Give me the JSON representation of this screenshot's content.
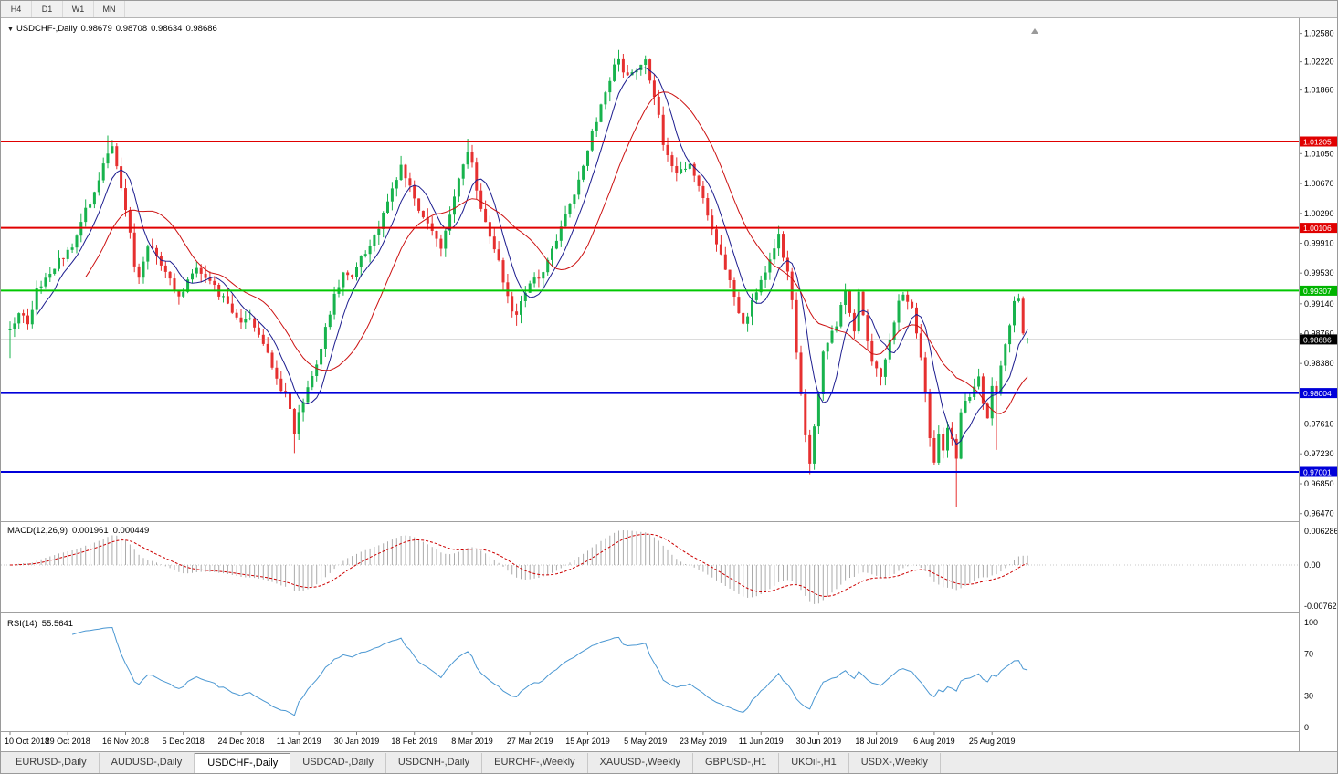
{
  "toolbar": {
    "timeframes": [
      "H4",
      "D1",
      "W1",
      "MN"
    ]
  },
  "chart": {
    "symbol_label": "USDCHF-,Daily",
    "ohlc": {
      "open": "0.98679",
      "high": "0.98708",
      "low": "0.98634",
      "close": "0.98686"
    },
    "price_axis": {
      "ticks": [
        "1.02580",
        "1.02220",
        "1.01860",
        "1.01050",
        "1.00670",
        "1.00290",
        "0.99910",
        "0.99530",
        "0.99140",
        "0.98760",
        "0.98380",
        "0.97610",
        "0.97230",
        "0.96850",
        "0.96470"
      ],
      "badges": [
        {
          "label": "1.01205",
          "value": 1.01205,
          "bg": "#e00000"
        },
        {
          "label": "1.00106",
          "value": 1.00106,
          "bg": "#e00000"
        },
        {
          "label": "0.99307",
          "value": 0.99307,
          "bg": "#00b400"
        },
        {
          "label": "0.98686",
          "value": 0.98686,
          "bg": "#000000"
        },
        {
          "label": "0.98004",
          "value": 0.98004,
          "bg": "#0000d9"
        },
        {
          "label": "0.97001",
          "value": 0.97001,
          "bg": "#0000d9"
        }
      ]
    }
  },
  "indicators": {
    "macd": {
      "label": "MACD(12,26,9)",
      "value_main": "0.001961",
      "value_signal": "0.000449",
      "axis": [
        "0.006286",
        "0.00",
        "-0.00762"
      ]
    },
    "rsi": {
      "label": "RSI(14)",
      "value": "55.5641",
      "axis": [
        "100",
        "70",
        "30",
        "0"
      ],
      "levels": [
        70,
        30
      ]
    }
  },
  "tabs": {
    "items": [
      "EURUSD-,Daily",
      "AUDUSD-,Daily",
      "USDCHF-,Daily",
      "USDCAD-,Daily",
      "USDCNH-,Daily",
      "EURCHF-,Weekly",
      "XAUUSD-,Weekly",
      "GBPUSD-,H1",
      "UKOil-,H1",
      "USDX-,Weekly"
    ],
    "active_index": 2
  },
  "colors": {
    "up_candle": "#18b34d",
    "down_candle": "#e63030",
    "ma_fast": "#1d1d8f",
    "ma_slow": "#cc1111",
    "macd_hist": "#ababab",
    "macd_signal": "#cc0000",
    "rsi_line": "#4a97d2",
    "hline_red": "#e00000",
    "hline_green": "#00c800",
    "hline_blue": "#0000d9",
    "current_price_badge": "#000000"
  },
  "chart_data": {
    "type": "candlestick",
    "symbol": "USDCHF",
    "timeframe": "Daily",
    "n_candles": 230,
    "current_price": 0.98686,
    "last_ohlc": {
      "open": 0.98679,
      "high": 0.98708,
      "low": 0.98634,
      "close": 0.98686
    },
    "price_range_visible": [
      0.9647,
      1.0258
    ],
    "hlines": [
      {
        "label": "1.01205",
        "value": 1.01205,
        "color": "#e00000"
      },
      {
        "label": "1.00106",
        "value": 1.00106,
        "color": "#e00000"
      },
      {
        "label": "0.99307",
        "value": 0.99307,
        "color": "#00c800"
      },
      {
        "label": "0.98004",
        "value": 0.98004,
        "color": "#0000d9"
      },
      {
        "label": "0.97001",
        "value": 0.97001,
        "color": "#0000d9"
      }
    ],
    "date_labels": [
      "10 Oct 2018",
      "29 Oct 2018",
      "16 Nov 2018",
      "5 Dec 2018",
      "24 Dec 2018",
      "11 Jan 2019",
      "30 Jan 2019",
      "18 Feb 2019",
      "8 Mar 2019",
      "27 Mar 2019",
      "15 Apr 2019",
      "5 May 2019",
      "23 May 2019",
      "11 Jun 2019",
      "30 Jun 2019",
      "18 Jul 2019",
      "6 Aug 2019",
      "25 Aug 2019"
    ],
    "close_anchors": [
      [
        0,
        0.988
      ],
      [
        2,
        0.99
      ],
      [
        4,
        0.9892
      ],
      [
        6,
        0.993
      ],
      [
        9,
        0.9955
      ],
      [
        12,
        0.9975
      ],
      [
        14,
        0.999
      ],
      [
        16,
        1.002
      ],
      [
        18,
        1.0045
      ],
      [
        20,
        1.0075
      ],
      [
        22,
        1.011
      ],
      [
        23,
        1.0118
      ],
      [
        24,
        1.0085
      ],
      [
        25,
        1.006
      ],
      [
        26,
        1.003
      ],
      [
        27,
        1.0
      ],
      [
        28,
        0.9965
      ],
      [
        29,
        0.9945
      ],
      [
        31,
        0.9985
      ],
      [
        33,
        0.9975
      ],
      [
        35,
        0.9955
      ],
      [
        37,
        0.993
      ],
      [
        38,
        0.992
      ],
      [
        40,
        0.9945
      ],
      [
        42,
        0.996
      ],
      [
        44,
        0.995
      ],
      [
        46,
        0.9935
      ],
      [
        48,
        0.992
      ],
      [
        50,
        0.9905
      ],
      [
        52,
        0.989
      ],
      [
        54,
        0.9895
      ],
      [
        56,
        0.9875
      ],
      [
        58,
        0.985
      ],
      [
        60,
        0.982
      ],
      [
        62,
        0.9795
      ],
      [
        63,
        0.978
      ],
      [
        64,
        0.9748
      ],
      [
        65,
        0.9775
      ],
      [
        67,
        0.981
      ],
      [
        69,
        0.984
      ],
      [
        71,
        0.988
      ],
      [
        73,
        0.993
      ],
      [
        75,
        0.995
      ],
      [
        77,
        0.9945
      ],
      [
        79,
        0.997
      ],
      [
        81,
        0.999
      ],
      [
        83,
        1.001
      ],
      [
        85,
        1.004
      ],
      [
        87,
        1.0075
      ],
      [
        88,
        1.0092
      ],
      [
        90,
        1.006
      ],
      [
        91,
        1.0045
      ],
      [
        93,
        1.002
      ],
      [
        95,
        1.001
      ],
      [
        97,
        0.9985
      ],
      [
        98,
        1.0005
      ],
      [
        100,
        1.005
      ],
      [
        102,
        1.009
      ],
      [
        103,
        1.0108
      ],
      [
        104,
        1.009
      ],
      [
        105,
        1.006
      ],
      [
        106,
        1.003
      ],
      [
        108,
        1.0
      ],
      [
        110,
        0.997
      ],
      [
        112,
        0.992
      ],
      [
        114,
        0.9895
      ],
      [
        116,
        0.993
      ],
      [
        118,
        0.9945
      ],
      [
        120,
        0.9955
      ],
      [
        122,
        0.998
      ],
      [
        124,
        1.001
      ],
      [
        126,
        1.004
      ],
      [
        128,
        1.007
      ],
      [
        130,
        1.011
      ],
      [
        132,
        1.015
      ],
      [
        134,
        1.0185
      ],
      [
        136,
        1.0215
      ],
      [
        137,
        1.0225
      ],
      [
        138,
        1.021
      ],
      [
        140,
        1.0205
      ],
      [
        142,
        1.022
      ],
      [
        143,
        1.0222
      ],
      [
        145,
        1.018
      ],
      [
        147,
        1.012
      ],
      [
        149,
        1.0085
      ],
      [
        151,
        1.0085
      ],
      [
        153,
        1.009
      ],
      [
        155,
        1.006
      ],
      [
        157,
        1.003
      ],
      [
        159,
        0.999
      ],
      [
        161,
        0.996
      ],
      [
        163,
        0.992
      ],
      [
        165,
        0.989
      ],
      [
        167,
        0.9915
      ],
      [
        169,
        0.9945
      ],
      [
        171,
        0.997
      ],
      [
        173,
        1.0008
      ],
      [
        174,
        0.9975
      ],
      [
        175,
        0.995
      ],
      [
        176,
        0.992
      ],
      [
        177,
        0.985
      ],
      [
        178,
        0.98
      ],
      [
        179,
        0.975
      ],
      [
        180,
        0.9715
      ],
      [
        181,
        0.976
      ],
      [
        182,
        0.98
      ],
      [
        183,
        0.985
      ],
      [
        184,
        0.986
      ],
      [
        186,
        0.989
      ],
      [
        188,
        0.993
      ],
      [
        190,
        0.988
      ],
      [
        191,
        0.993
      ],
      [
        192,
        0.99
      ],
      [
        194,
        0.984
      ],
      [
        196,
        0.982
      ],
      [
        198,
        0.987
      ],
      [
        200,
        0.992
      ],
      [
        201,
        0.993
      ],
      [
        203,
        0.991
      ],
      [
        205,
        0.985
      ],
      [
        206,
        0.98
      ],
      [
        207,
        0.974
      ],
      [
        208,
        0.9712
      ],
      [
        209,
        0.9745
      ],
      [
        210,
        0.9725
      ],
      [
        211,
        0.9758
      ],
      [
        212,
        0.9745
      ],
      [
        213,
        0.972
      ],
      [
        214,
        0.9775
      ],
      [
        216,
        0.98
      ],
      [
        218,
        0.982
      ],
      [
        219,
        0.979
      ],
      [
        220,
        0.977
      ],
      [
        221,
        0.981
      ],
      [
        222,
        0.98
      ],
      [
        223,
        0.984
      ],
      [
        224,
        0.9865
      ],
      [
        225,
        0.989
      ],
      [
        226,
        0.9915
      ],
      [
        227,
        0.9925
      ],
      [
        228,
        0.988
      ],
      [
        229,
        0.98686
      ]
    ],
    "extreme_highs": [
      [
        22,
        1.0128
      ],
      [
        88,
        1.0102
      ],
      [
        103,
        1.0124
      ],
      [
        137,
        1.0237
      ],
      [
        143,
        1.023
      ],
      [
        173,
        1.0013
      ]
    ],
    "extreme_lows": [
      [
        0,
        0.9845
      ],
      [
        64,
        0.9724
      ],
      [
        114,
        0.9886
      ],
      [
        180,
        0.9697
      ],
      [
        213,
        0.9655
      ],
      [
        222,
        0.9728
      ]
    ]
  }
}
